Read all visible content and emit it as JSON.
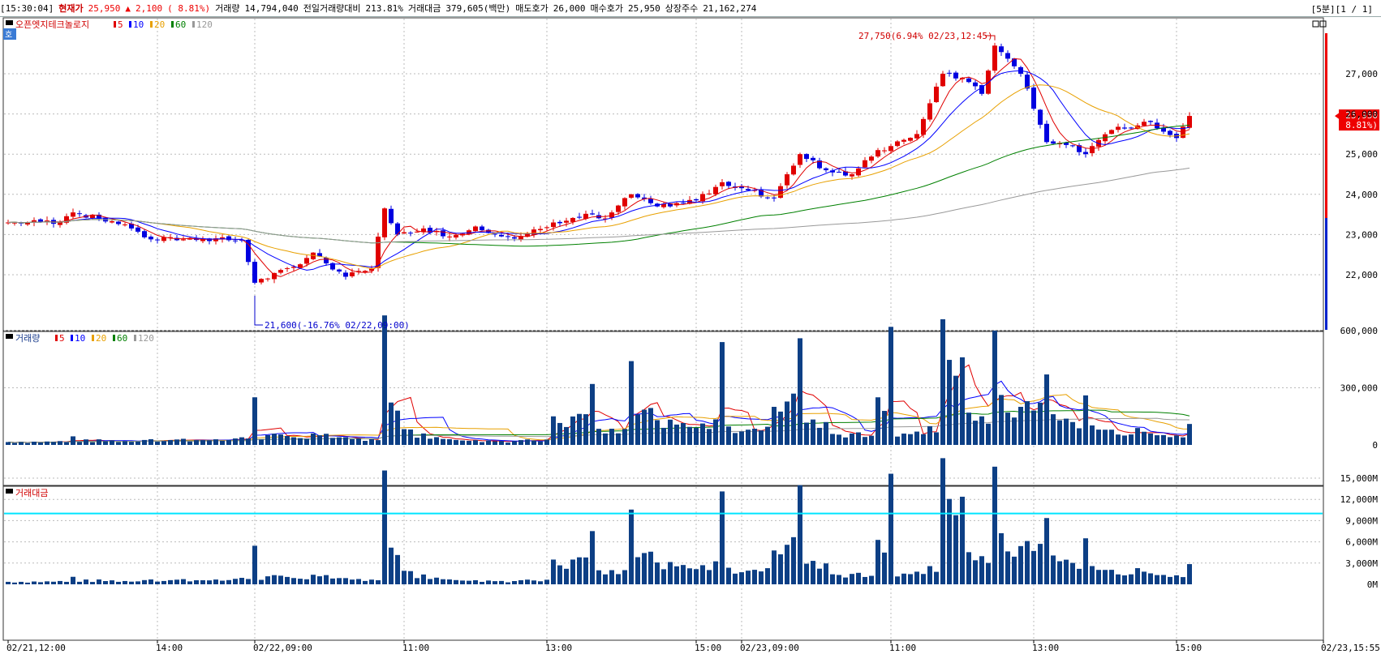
{
  "topbar": {
    "time": "[15:30:04]",
    "price_label": "현재가",
    "price": "25,950",
    "arrow": "▲",
    "change": "2,100",
    "change_pct": "( 8.81%)",
    "volume_label": "거래량",
    "volume": "14,794,040",
    "prev_ratio_label": "전일거래량대비",
    "prev_ratio": "213.81%",
    "amount_label": "거래대금",
    "amount": "379,605(백만)",
    "ask_label": "매도호가",
    "ask": "26,000",
    "bid_label": "매수호가",
    "bid": "25,950",
    "shares_label": "상장주수",
    "shares": "21,162,274",
    "period": "[5분][1 / 1]"
  },
  "price_panel": {
    "name": "오픈엣지테크놀로지",
    "ma_labels": [
      "5",
      "10",
      "20",
      "60",
      "120"
    ],
    "ma_colors": [
      "#e00000",
      "#0000ff",
      "#e8a000",
      "#008000",
      "#999999"
    ],
    "y_ticks": [
      "27,000",
      "26,000",
      "25,000",
      "24,000",
      "23,000",
      "22,000"
    ],
    "high_annotation": "27,750(6.94% 02/23,12:45)",
    "low_annotation": "21,600(-16.76% 02/22,09:00)",
    "current_price_tag": "25,950",
    "current_pct_tag": "( 8.81%)",
    "badge": "호"
  },
  "volume_panel": {
    "name": "거래량",
    "ma_labels": [
      "5",
      "10",
      "20",
      "60",
      "120"
    ],
    "y_ticks": [
      "600,000",
      "300,000",
      "0"
    ]
  },
  "amount_panel": {
    "name": "거래대금",
    "y_ticks": [
      "15,000M",
      "12,000M",
      "9,000M",
      "6,000M",
      "3,000M",
      "0M"
    ]
  },
  "x_axis": {
    "labels": [
      "02/21,12:00",
      "14:00",
      "02/22,09:00",
      "11:00",
      "13:00",
      "15:00",
      "02/23,09:00",
      "11:00",
      "13:00",
      "15:00",
      "02/23,15:55"
    ]
  },
  "chart_data": {
    "type": "candlestick",
    "interval": "5min",
    "y_range_price": [
      21500,
      28000
    ],
    "y_range_volume": [
      0,
      680000
    ],
    "y_range_amount_millions": [
      0,
      18000
    ],
    "amount_reference_line_millions": 10000,
    "annotations": {
      "high": {
        "value": 27750,
        "time": "02/23,12:45"
      },
      "low": {
        "value": 21600,
        "time": "02/22,09:00"
      }
    },
    "anchors": [
      {
        "i": 0,
        "c": 23300,
        "v": 15000
      },
      {
        "i": 8,
        "c": 23320,
        "v": 20000
      },
      {
        "i": 10,
        "c": 23550,
        "v": 45000
      },
      {
        "i": 18,
        "c": 23250,
        "v": 20000
      },
      {
        "i": 22,
        "c": 22880,
        "v": 30000
      },
      {
        "i": 30,
        "c": 22900,
        "v": 25000
      },
      {
        "i": 36,
        "c": 22850,
        "v": 40000
      },
      {
        "i": 38,
        "c": 21800,
        "v": 250000
      },
      {
        "i": 44,
        "c": 22200,
        "v": 40000
      },
      {
        "i": 47,
        "c": 22550,
        "v": 60000
      },
      {
        "i": 52,
        "c": 21950,
        "v": 40000
      },
      {
        "i": 56,
        "c": 22150,
        "v": 30000
      },
      {
        "i": 58,
        "c": 23650,
        "v": 680000
      },
      {
        "i": 60,
        "c": 23000,
        "v": 180000
      },
      {
        "i": 64,
        "c": 23150,
        "v": 60000
      },
      {
        "i": 68,
        "c": 22950,
        "v": 30000
      },
      {
        "i": 72,
        "c": 23200,
        "v": 25000
      },
      {
        "i": 78,
        "c": 22900,
        "v": 20000
      },
      {
        "i": 84,
        "c": 23300,
        "v": 150000
      },
      {
        "i": 90,
        "c": 23500,
        "v": 320000
      },
      {
        "i": 92,
        "c": 23400,
        "v": 60000
      },
      {
        "i": 96,
        "c": 24000,
        "v": 440000
      },
      {
        "i": 100,
        "c": 23700,
        "v": 130000
      },
      {
        "i": 106,
        "c": 23850,
        "v": 90000
      },
      {
        "i": 110,
        "c": 24300,
        "v": 540000
      },
      {
        "i": 114,
        "c": 24100,
        "v": 80000
      },
      {
        "i": 118,
        "c": 23900,
        "v": 200000
      },
      {
        "i": 122,
        "c": 25000,
        "v": 560000
      },
      {
        "i": 126,
        "c": 24600,
        "v": 120000
      },
      {
        "i": 130,
        "c": 24500,
        "v": 60000
      },
      {
        "i": 134,
        "c": 25100,
        "v": 250000
      },
      {
        "i": 136,
        "c": 25200,
        "v": 620000
      },
      {
        "i": 140,
        "c": 25500,
        "v": 70000
      },
      {
        "i": 144,
        "c": 27000,
        "v": 660000
      },
      {
        "i": 147,
        "c": 26900,
        "v": 460000
      },
      {
        "i": 150,
        "c": 26500,
        "v": 150000
      },
      {
        "i": 152,
        "c": 27700,
        "v": 600000
      },
      {
        "i": 156,
        "c": 27000,
        "v": 200000
      },
      {
        "i": 160,
        "c": 25300,
        "v": 370000
      },
      {
        "i": 164,
        "c": 25200,
        "v": 120000
      },
      {
        "i": 166,
        "c": 25000,
        "v": 260000
      },
      {
        "i": 170,
        "c": 25600,
        "v": 80000
      },
      {
        "i": 176,
        "c": 25800,
        "v": 60000
      },
      {
        "i": 180,
        "c": 25400,
        "v": 50000
      },
      {
        "i": 182,
        "c": 25950,
        "v": 110000
      }
    ],
    "series": [
      {
        "name": "5",
        "type": "ma"
      },
      {
        "name": "10",
        "type": "ma"
      },
      {
        "name": "20",
        "type": "ma"
      },
      {
        "name": "60",
        "type": "ma"
      },
      {
        "name": "120",
        "type": "ma"
      }
    ]
  }
}
